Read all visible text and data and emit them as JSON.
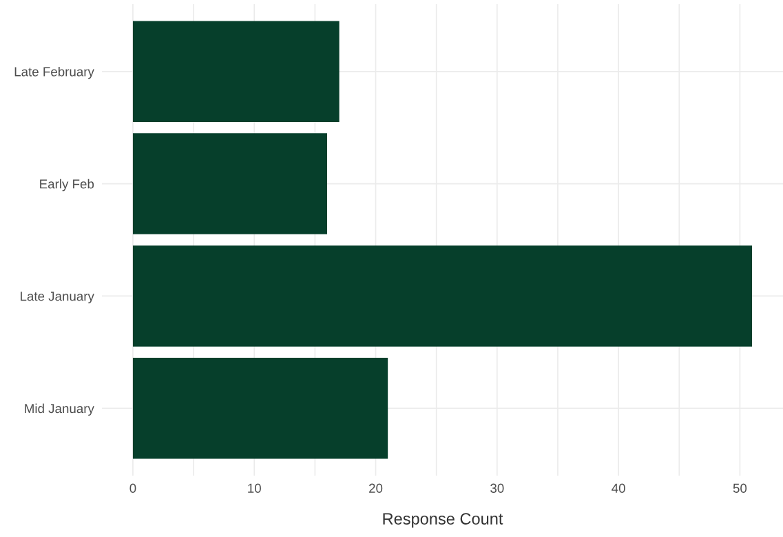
{
  "chart_data": {
    "type": "bar",
    "orientation": "horizontal",
    "categories": [
      "Late February",
      "Early Feb",
      "Late January",
      "Mid January"
    ],
    "values": [
      17,
      16,
      51,
      21
    ],
    "color": "#063f2b",
    "xlabel": "Response Count",
    "xlim": [
      -2.55,
      53.55
    ],
    "xticks": [
      0,
      {
        "value": 5,
        "label": null
      },
      10,
      {
        "value": 15,
        "label": null
      },
      20,
      {
        "value": 25,
        "label": null
      },
      30,
      {
        "value": 35,
        "label": null
      },
      40,
      {
        "value": 45,
        "label": null
      },
      50
    ],
    "grid": true,
    "legend": false
  }
}
